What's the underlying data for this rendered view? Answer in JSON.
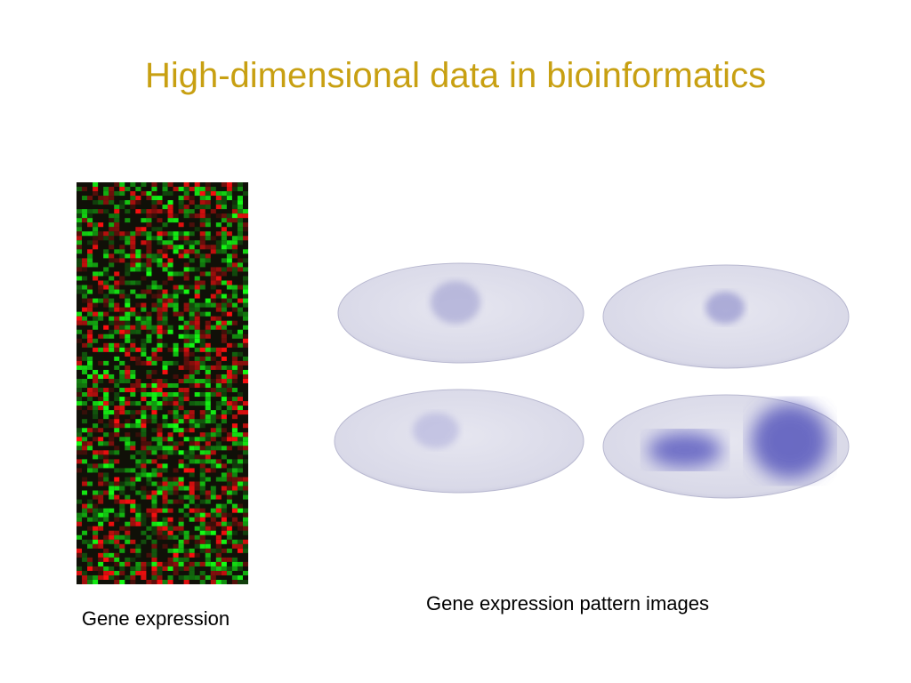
{
  "slide": {
    "title": "High-dimensional data in bioinformatics",
    "captions": [
      "Gene expression",
      "Gene expression pattern images"
    ]
  }
}
